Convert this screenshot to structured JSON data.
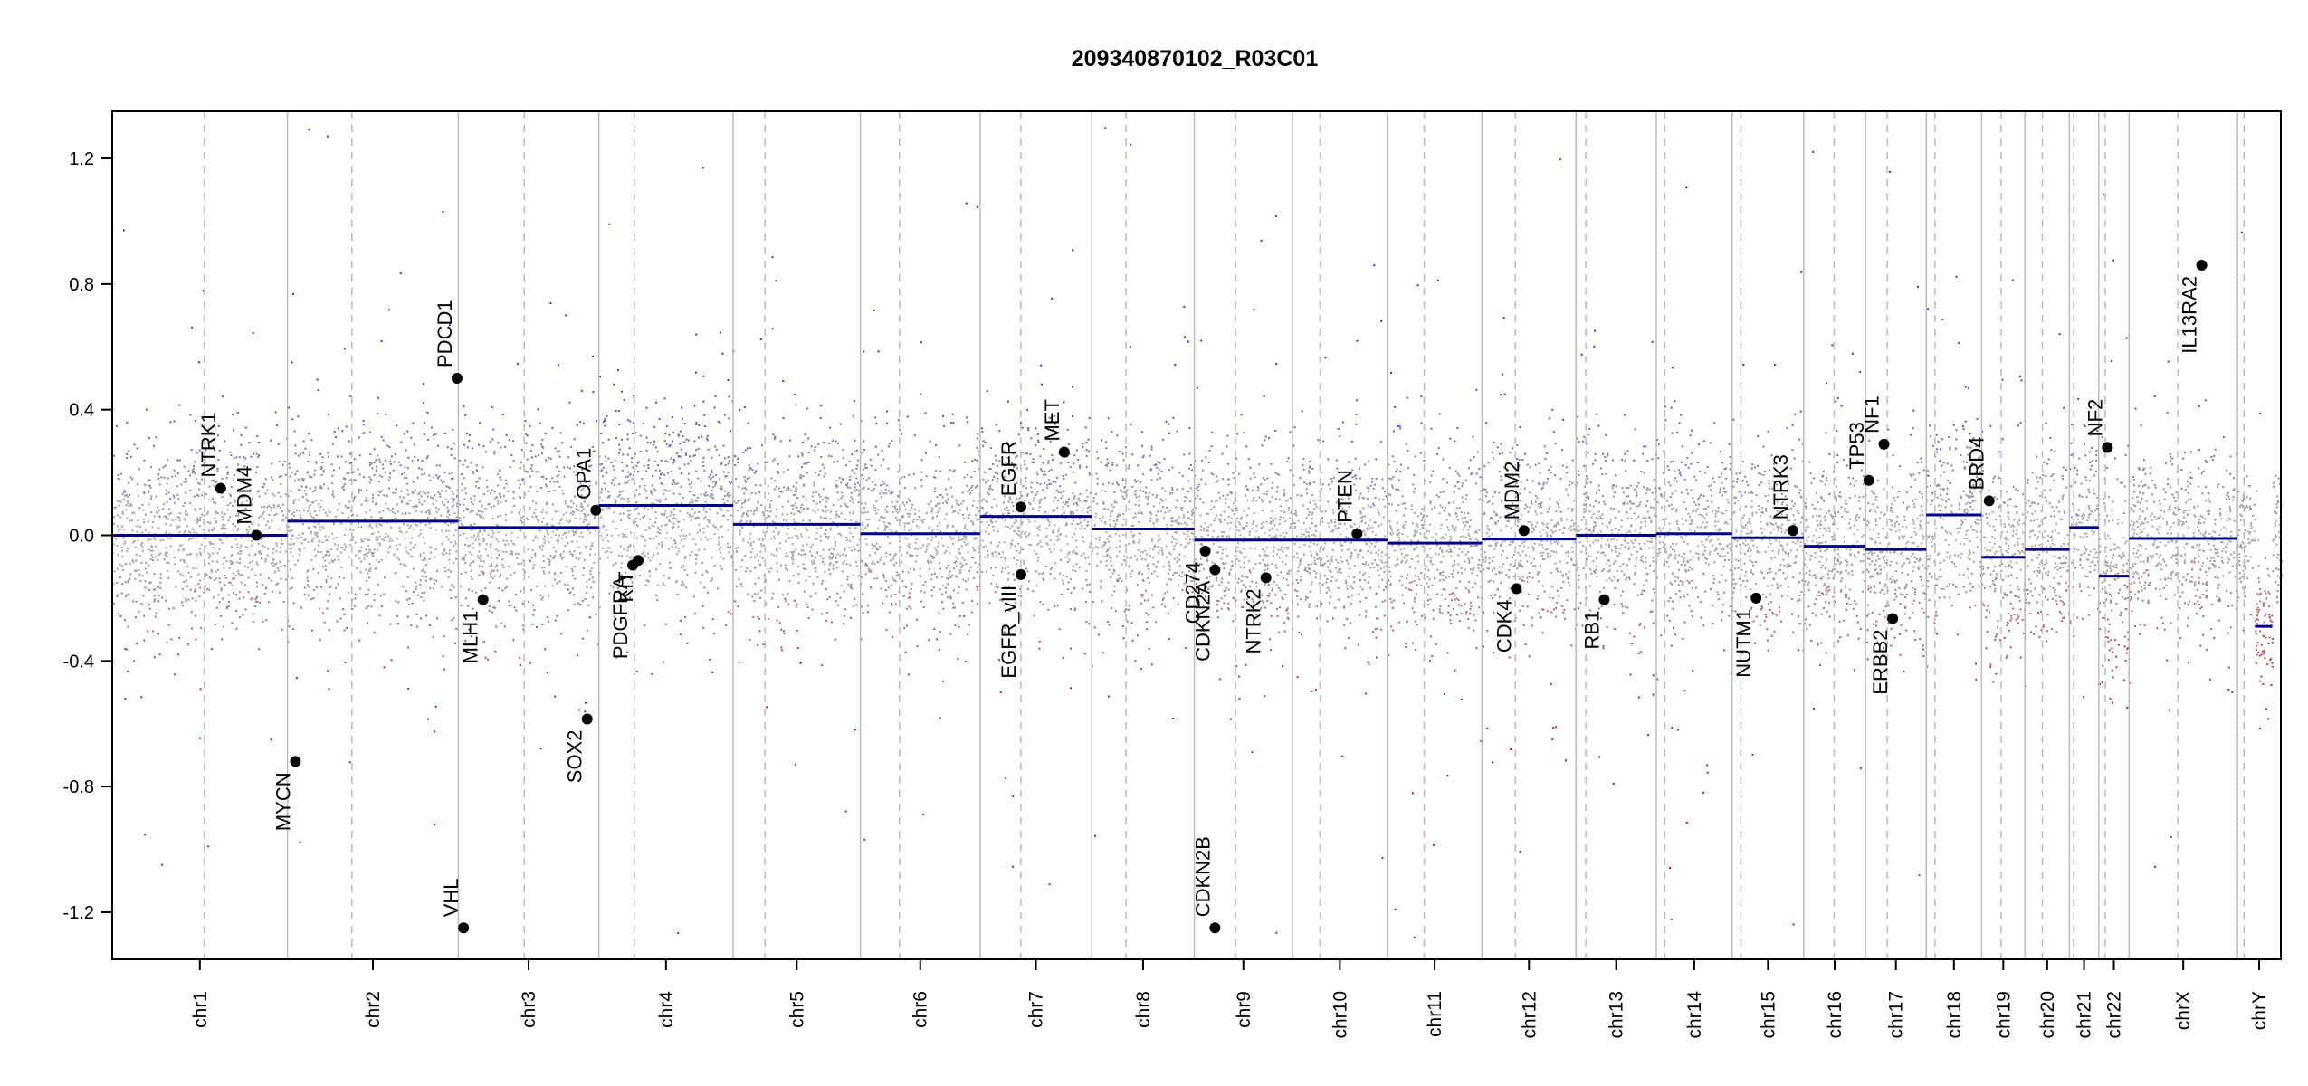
{
  "chart_data": {
    "type": "scatter",
    "title": "209340870102_R03C01",
    "xlabel": "",
    "ylabel": "",
    "ylim": [
      -1.35,
      1.35
    ],
    "yticks": [
      1.2,
      0.8,
      0.4,
      0.0,
      -0.4,
      -0.8,
      -1.2
    ],
    "ytick_labels": [
      "1.2",
      "0.8",
      "0.4",
      "0.0",
      "-0.4",
      "-0.8",
      "-1.2"
    ],
    "colors": {
      "gain": "#3333cc",
      "loss": "#b22222",
      "neutral": "#aaaaaa",
      "segment": "#00008b",
      "marker": "#000000",
      "border": "#000000",
      "chr_sep": "#bbbbbb",
      "centromere": "#bbbbbb"
    },
    "chromosomes": [
      {
        "name": "chr1",
        "start": 0.0,
        "end": 0.0808,
        "cen": 0.0424,
        "segments": [
          {
            "s": 0.0,
            "e": 0.0808,
            "v": 0.0
          }
        ],
        "noise": 0.3
      },
      {
        "name": "chr2",
        "start": 0.0808,
        "end": 0.1596,
        "cen": 0.1105,
        "segments": [
          {
            "s": 0.0808,
            "e": 0.1596,
            "v": 0.045
          }
        ],
        "noise": 0.3
      },
      {
        "name": "chr3",
        "start": 0.1596,
        "end": 0.2244,
        "cen": 0.19,
        "segments": [
          {
            "s": 0.1596,
            "e": 0.2244,
            "v": 0.025
          }
        ],
        "noise": 0.3
      },
      {
        "name": "chr4",
        "start": 0.2244,
        "end": 0.2863,
        "cen": 0.2407,
        "segments": [
          {
            "s": 0.2244,
            "e": 0.2863,
            "v": 0.095
          }
        ],
        "noise": 0.3
      },
      {
        "name": "chr5",
        "start": 0.2863,
        "end": 0.345,
        "cen": 0.301,
        "segments": [
          {
            "s": 0.2863,
            "e": 0.345,
            "v": 0.035
          }
        ],
        "noise": 0.28
      },
      {
        "name": "chr6",
        "start": 0.345,
        "end": 0.4002,
        "cen": 0.363,
        "segments": [
          {
            "s": 0.345,
            "e": 0.4002,
            "v": 0.005
          }
        ],
        "noise": 0.28
      },
      {
        "name": "chr7",
        "start": 0.4002,
        "end": 0.4517,
        "cen": 0.419,
        "segments": [
          {
            "s": 0.4002,
            "e": 0.4517,
            "v": 0.06
          }
        ],
        "noise": 0.28
      },
      {
        "name": "chr8",
        "start": 0.4517,
        "end": 0.499,
        "cen": 0.4675,
        "segments": [
          {
            "s": 0.4517,
            "e": 0.499,
            "v": 0.02
          }
        ],
        "noise": 0.28
      },
      {
        "name": "chr9",
        "start": 0.499,
        "end": 0.5442,
        "cen": 0.518,
        "segments": [
          {
            "s": 0.499,
            "e": 0.5442,
            "v": -0.015
          }
        ],
        "noise": 0.28
      },
      {
        "name": "chr10",
        "start": 0.5442,
        "end": 0.588,
        "cen": 0.557,
        "segments": [
          {
            "s": 0.5442,
            "e": 0.588,
            "v": -0.015
          }
        ],
        "noise": 0.28
      },
      {
        "name": "chr11",
        "start": 0.588,
        "end": 0.6316,
        "cen": 0.605,
        "segments": [
          {
            "s": 0.588,
            "e": 0.6316,
            "v": -0.025
          }
        ],
        "noise": 0.28
      },
      {
        "name": "chr12",
        "start": 0.6316,
        "end": 0.675,
        "cen": 0.647,
        "segments": [
          {
            "s": 0.6316,
            "e": 0.675,
            "v": -0.012
          }
        ],
        "noise": 0.28
      },
      {
        "name": "chr13",
        "start": 0.675,
        "end": 0.712,
        "cen": 0.6795,
        "segments": [
          {
            "s": 0.675,
            "e": 0.712,
            "v": 0.0
          }
        ],
        "noise": 0.28
      },
      {
        "name": "chr14",
        "start": 0.712,
        "end": 0.747,
        "cen": 0.716,
        "segments": [
          {
            "s": 0.712,
            "e": 0.747,
            "v": 0.005
          }
        ],
        "noise": 0.28
      },
      {
        "name": "chr15",
        "start": 0.747,
        "end": 0.78,
        "cen": 0.751,
        "segments": [
          {
            "s": 0.747,
            "e": 0.78,
            "v": -0.008
          }
        ],
        "noise": 0.28
      },
      {
        "name": "chr16",
        "start": 0.78,
        "end": 0.8085,
        "cen": 0.794,
        "segments": [
          {
            "s": 0.78,
            "e": 0.8085,
            "v": -0.035
          }
        ],
        "noise": 0.28
      },
      {
        "name": "chr17",
        "start": 0.8085,
        "end": 0.8365,
        "cen": 0.8185,
        "segments": [
          {
            "s": 0.8085,
            "e": 0.8365,
            "v": -0.045
          }
        ],
        "noise": 0.28
      },
      {
        "name": "chr18",
        "start": 0.8365,
        "end": 0.862,
        "cen": 0.8405,
        "segments": [
          {
            "s": 0.8365,
            "e": 0.862,
            "v": 0.065
          }
        ],
        "noise": 0.28
      },
      {
        "name": "chr19",
        "start": 0.862,
        "end": 0.882,
        "cen": 0.871,
        "segments": [
          {
            "s": 0.862,
            "e": 0.882,
            "v": -0.07
          }
        ],
        "noise": 0.3
      },
      {
        "name": "chr20",
        "start": 0.882,
        "end": 0.9025,
        "cen": 0.89,
        "segments": [
          {
            "s": 0.882,
            "e": 0.9025,
            "v": -0.045
          }
        ],
        "noise": 0.28
      },
      {
        "name": "chr21",
        "start": 0.9025,
        "end": 0.916,
        "cen": 0.9045,
        "segments": [
          {
            "s": 0.9025,
            "e": 0.916,
            "v": 0.025
          }
        ],
        "noise": 0.28
      },
      {
        "name": "chr22",
        "start": 0.916,
        "end": 0.93,
        "cen": 0.919,
        "segments": [
          {
            "s": 0.916,
            "e": 0.93,
            "v": -0.13
          }
        ],
        "noise": 0.3
      },
      {
        "name": "chrX",
        "start": 0.93,
        "end": 0.98,
        "cen": 0.9525,
        "segments": [
          {
            "s": 0.93,
            "e": 0.98,
            "v": -0.01
          }
        ],
        "noise": 0.26
      },
      {
        "name": "chrY",
        "start": 0.98,
        "end": 1.0,
        "cen": 0.983,
        "segments": [
          {
            "s": 0.988,
            "e": 0.996,
            "v": -0.29
          }
        ],
        "noise": 0.2
      }
    ],
    "genes": [
      {
        "name": "NTRK1",
        "x": 0.05,
        "y": 0.15,
        "label_side": "above"
      },
      {
        "name": "MDM4",
        "x": 0.0665,
        "y": 0.0,
        "label_side": "above"
      },
      {
        "name": "MYCN",
        "x": 0.0845,
        "y": -0.72,
        "label_side": "below"
      },
      {
        "name": "PDCD1",
        "x": 0.159,
        "y": 0.5,
        "label_side": "above"
      },
      {
        "name": "VHL",
        "x": 0.162,
        "y": -1.25,
        "label_side": "above"
      },
      {
        "name": "MLH1",
        "x": 0.171,
        "y": -0.205,
        "label_side": "below"
      },
      {
        "name": "SOX2",
        "x": 0.219,
        "y": -0.585,
        "label_side": "below"
      },
      {
        "name": "OPA1",
        "x": 0.223,
        "y": 0.08,
        "label_side": "above"
      },
      {
        "name": "PDGFRA",
        "x": 0.24,
        "y": -0.095,
        "label_side": "below"
      },
      {
        "name": "KIT",
        "x": 0.2425,
        "y": -0.08,
        "label_side": "below"
      },
      {
        "name": "EGFR",
        "x": 0.419,
        "y": 0.09,
        "label_side": "above"
      },
      {
        "name": "EGFR_vIII",
        "x": 0.419,
        "y": -0.125,
        "label_side": "below"
      },
      {
        "name": "MET",
        "x": 0.439,
        "y": 0.265,
        "label_side": "above"
      },
      {
        "name": "CD274",
        "x": 0.504,
        "y": -0.05,
        "label_side": "below"
      },
      {
        "name": "CDKN2A",
        "x": 0.5085,
        "y": -0.11,
        "label_side": "below"
      },
      {
        "name": "CDKN2B",
        "x": 0.5085,
        "y": -1.25,
        "label_side": "above"
      },
      {
        "name": "NTRK2",
        "x": 0.532,
        "y": -0.135,
        "label_side": "below"
      },
      {
        "name": "PTEN",
        "x": 0.574,
        "y": 0.005,
        "label_side": "above"
      },
      {
        "name": "MDM2",
        "x": 0.651,
        "y": 0.015,
        "label_side": "above"
      },
      {
        "name": "CDK4",
        "x": 0.6475,
        "y": -0.17,
        "label_side": "below"
      },
      {
        "name": "RB1",
        "x": 0.688,
        "y": -0.205,
        "label_side": "below"
      },
      {
        "name": "NUTM1",
        "x": 0.758,
        "y": -0.2,
        "label_side": "below"
      },
      {
        "name": "NTRK3",
        "x": 0.775,
        "y": 0.015,
        "label_side": "above"
      },
      {
        "name": "TP53",
        "x": 0.81,
        "y": 0.175,
        "label_side": "above"
      },
      {
        "name": "NF1",
        "x": 0.817,
        "y": 0.29,
        "label_side": "above"
      },
      {
        "name": "ERBB2",
        "x": 0.821,
        "y": -0.265,
        "label_side": "below"
      },
      {
        "name": "BRD4",
        "x": 0.8655,
        "y": 0.11,
        "label_side": "above"
      },
      {
        "name": "NF2",
        "x": 0.92,
        "y": 0.28,
        "label_side": "above"
      },
      {
        "name": "IL13RA2",
        "x": 0.9635,
        "y": 0.86,
        "label_side": "below"
      }
    ]
  }
}
